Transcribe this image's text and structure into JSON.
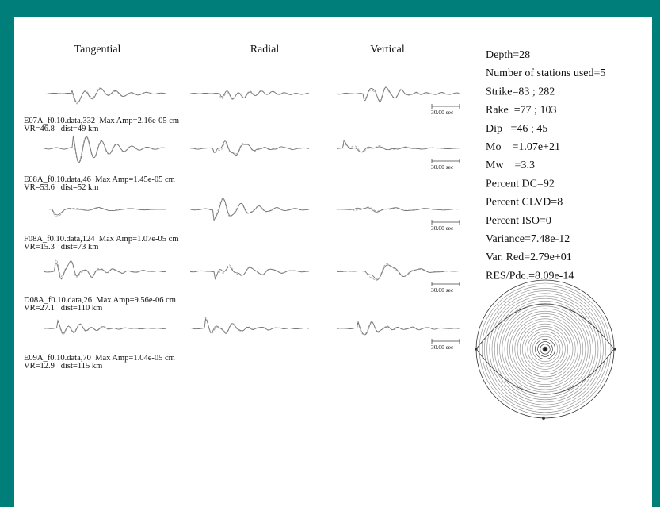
{
  "headers": [
    "Tangential",
    "Radial",
    "Vertical"
  ],
  "stations": [
    {
      "label": "E07A_f0.10.data,332  Max Amp=2.16e-05 cm",
      "vr": "VR=46.8   dist=49 km",
      "scale": "30.00 sec"
    },
    {
      "label": "E08A_f0.10.data,46  Max Amp=1.45e-05 cm",
      "vr": "VR=53.6   dist=52 km",
      "scale": "30.00 sec"
    },
    {
      "label": "F08A_f0.10.data,124  Max Amp=1.07e-05 cm",
      "vr": "VR=15.3   dist=73 km",
      "scale": "30.00 sec"
    },
    {
      "label": "D08A_f0.10.data,26  Max Amp=9.56e-06 cm",
      "vr": "VR=27.1   dist=110 km",
      "scale": "30.00 sec"
    },
    {
      "label": "E09A_f0.10.data,70  Max Amp=1.04e-05 cm",
      "vr": "VR=12.9   dist=115 km",
      "scale": "30.00 sec"
    }
  ],
  "parameters": [
    "Depth=28",
    "Number of stations used=5",
    "Strike=83 ; 282",
    "Rake  =77 ; 103",
    "Dip   =46 ; 45",
    "Mo    =1.07e+21",
    "Mw    =3.3",
    "Percent DC=92",
    "Percent CLVD=8",
    "Percent ISO=0",
    "Variance=7.48e-12",
    "Var. Red=2.79e+01",
    "RES/Pdc.=8.09e-14"
  ]
}
